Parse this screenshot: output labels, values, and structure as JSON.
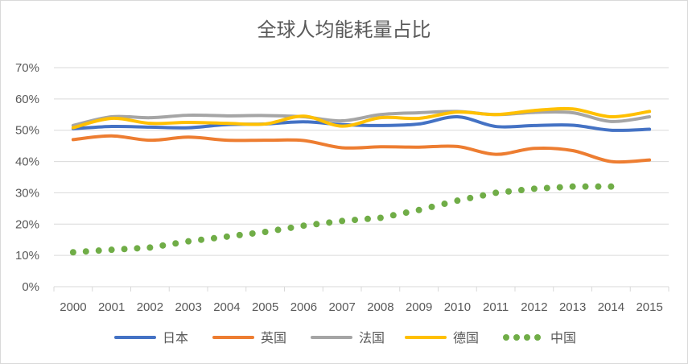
{
  "chart_data": {
    "type": "line",
    "title": "全球人均能耗量占比",
    "x": [
      "2000",
      "2001",
      "2002",
      "2003",
      "2004",
      "2005",
      "2006",
      "2007",
      "2008",
      "2009",
      "2010",
      "2011",
      "2012",
      "2013",
      "2014",
      "2015"
    ],
    "y_ticks": [
      "0%",
      "10%",
      "20%",
      "30%",
      "40%",
      "50%",
      "60%",
      "70%"
    ],
    "ylim": [
      0,
      0.7
    ],
    "grid": true,
    "legend_position": "bottom",
    "series": [
      {
        "name": "日本",
        "color": "#4472c4",
        "style": "solid",
        "values": [
          0.505,
          0.512,
          0.51,
          0.508,
          0.518,
          0.52,
          0.527,
          0.518,
          0.515,
          0.52,
          0.543,
          0.512,
          0.515,
          0.516,
          0.5,
          0.503
        ]
      },
      {
        "name": "英国",
        "color": "#ed7d31",
        "style": "solid",
        "values": [
          0.47,
          0.482,
          0.468,
          0.478,
          0.468,
          0.468,
          0.467,
          0.444,
          0.447,
          0.446,
          0.448,
          0.423,
          0.442,
          0.435,
          0.4,
          0.405
        ]
      },
      {
        "name": "法国",
        "color": "#a5a5a5",
        "style": "solid",
        "values": [
          0.515,
          0.543,
          0.54,
          0.548,
          0.546,
          0.547,
          0.543,
          0.53,
          0.55,
          0.556,
          0.56,
          0.55,
          0.557,
          0.556,
          0.528,
          0.543
        ]
      },
      {
        "name": "德国",
        "color": "#ffc000",
        "style": "solid",
        "values": [
          0.508,
          0.538,
          0.522,
          0.525,
          0.522,
          0.52,
          0.545,
          0.513,
          0.54,
          0.538,
          0.558,
          0.55,
          0.563,
          0.568,
          0.543,
          0.56
        ]
      },
      {
        "name": "中国",
        "color": "#70ad47",
        "style": "dotted",
        "values": [
          0.11,
          0.118,
          0.125,
          0.145,
          0.16,
          0.175,
          0.195,
          0.21,
          0.22,
          0.245,
          0.275,
          0.3,
          0.313,
          0.32,
          0.32,
          null
        ]
      }
    ]
  }
}
